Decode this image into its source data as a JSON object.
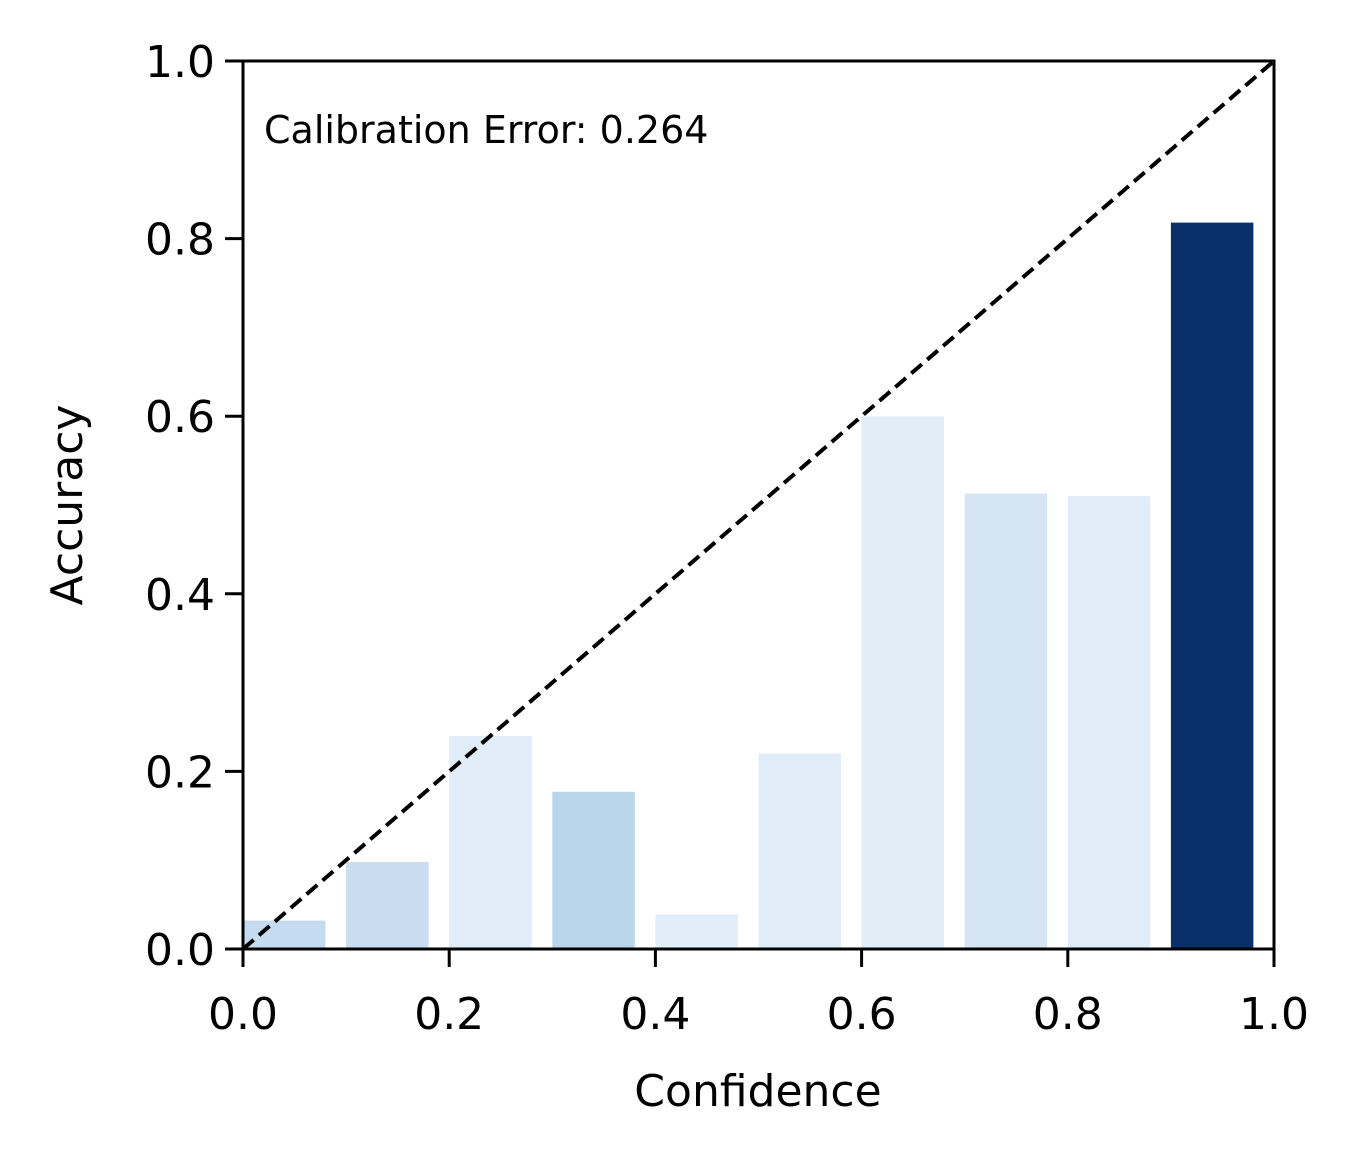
{
  "chart_data": {
    "type": "bar",
    "xlabel": "Confidence",
    "ylabel": "Accuracy",
    "xlim": [
      0.0,
      1.0
    ],
    "ylim": [
      0.0,
      1.0
    ],
    "x_ticks": [
      "0.0",
      "0.2",
      "0.4",
      "0.6",
      "0.8",
      "1.0"
    ],
    "y_ticks": [
      "0.0",
      "0.2",
      "0.4",
      "0.6",
      "0.8",
      "1.0"
    ],
    "annotation": "Calibration Error: 0.264",
    "grid": false,
    "bin_width": 0.1,
    "bars": [
      {
        "x": 0.0,
        "value": 0.032,
        "color": "#c5dbef"
      },
      {
        "x": 0.1,
        "value": 0.098,
        "color": "#c9dcf0"
      },
      {
        "x": 0.2,
        "value": 0.24,
        "color": "#e0ecf7"
      },
      {
        "x": 0.3,
        "value": 0.177,
        "color": "#b9d6ea"
      },
      {
        "x": 0.4,
        "value": 0.039,
        "color": "#e1edf8"
      },
      {
        "x": 0.5,
        "value": 0.22,
        "color": "#e0ecf7"
      },
      {
        "x": 0.6,
        "value": 0.6,
        "color": "#e2edf8"
      },
      {
        "x": 0.7,
        "value": 0.513,
        "color": "#d6e5f4"
      },
      {
        "x": 0.8,
        "value": 0.51,
        "color": "#e0ecf7"
      },
      {
        "x": 0.9,
        "value": 0.818,
        "color": "#0a306a"
      }
    ],
    "reference_line": {
      "from": [
        0.0,
        0.0
      ],
      "to": [
        1.0,
        1.0
      ],
      "style": "dashed",
      "color": "#000000"
    }
  }
}
